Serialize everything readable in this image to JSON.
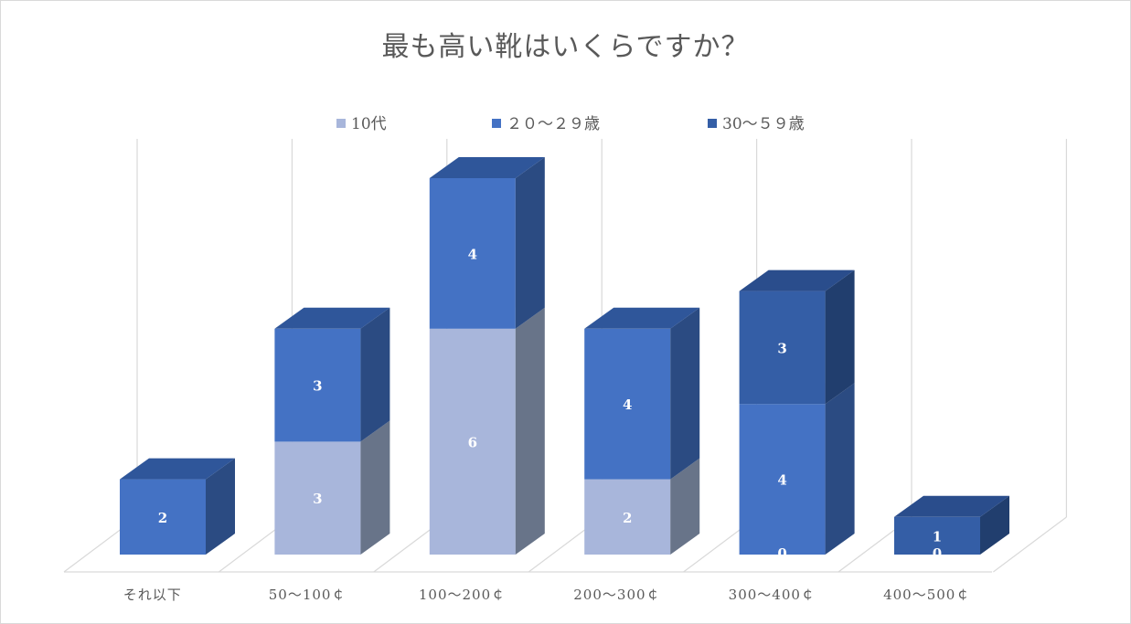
{
  "chart_data": {
    "type": "bar",
    "stacked": true,
    "three_d": true,
    "title": "最も高い靴はいくらですか？",
    "categories": [
      "それ以下",
      "50～100￠",
      "100～200￠",
      "200～300￠",
      "300～400￠",
      "400～500￠"
    ],
    "series": [
      {
        "name": "10代",
        "values": [
          null,
          3,
          6,
          2,
          0,
          null
        ],
        "labels": [
          "",
          "3",
          "6",
          "2",
          "0",
          ""
        ]
      },
      {
        "name": "２０～２９歳",
        "values": [
          2,
          3,
          4,
          4,
          4,
          0
        ],
        "labels": [
          "2",
          "3",
          "4",
          "4",
          "4",
          "0"
        ]
      },
      {
        "name": "30～５９歳",
        "values": [
          null,
          null,
          null,
          null,
          3,
          1
        ],
        "labels": [
          "",
          "",
          "",
          "",
          "3",
          "1"
        ]
      }
    ],
    "ylim": [
      0,
      11
    ],
    "grid": true,
    "legend_position": "top",
    "colors": {
      "series_front": [
        "#a8b6db",
        "#4472c4",
        "#345ea6"
      ],
      "series_side": [
        "#687489",
        "#2b4b82",
        "#213e6e"
      ],
      "series_top": [
        "#8b9cc4",
        "#2f569a",
        "#2a4d8c"
      ],
      "gridline": "#d9d9d9",
      "text": "#595959",
      "data_label": "#ffffff"
    }
  }
}
